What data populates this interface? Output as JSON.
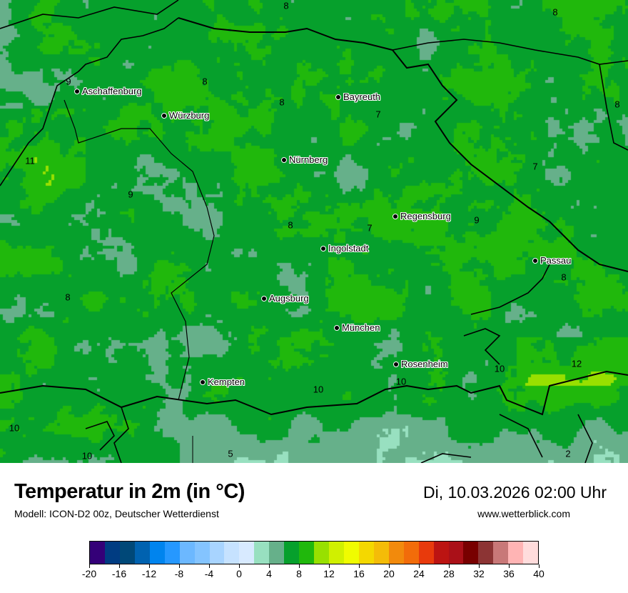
{
  "header": {
    "title": "Temperatur in 2m (in °C)",
    "model": "Modell: ICON-D2 00z, Deutscher Wetterdienst",
    "datetime": "Di, 10.03.2026 02:00 Uhr",
    "website": "www.wetterblick.com"
  },
  "legend": {
    "ticks": [
      "-20",
      "-16",
      "-12",
      "-8",
      "-4",
      "0",
      "4",
      "8",
      "12",
      "16",
      "20",
      "24",
      "28",
      "32",
      "36",
      "40"
    ],
    "colors": [
      "#340078",
      "#003c82",
      "#004878",
      "#0062b0",
      "#0084ee",
      "#2698ff",
      "#6cb8ff",
      "#84c4ff",
      "#a8d4ff",
      "#c6e2ff",
      "#d8eaff",
      "#98e0c0",
      "#66b08a",
      "#06a02c",
      "#20b80c",
      "#98e000",
      "#d0f000",
      "#f0fc00",
      "#f4d800",
      "#f4bc08",
      "#f28a0c",
      "#f26c0a",
      "#e83a0c",
      "#bc1412",
      "#aa1018",
      "#780000",
      "#8c3434",
      "#c87878",
      "#ffb4b4",
      "#ffdcdc"
    ]
  },
  "cities": [
    {
      "name": "Aschaffenburg"
    },
    {
      "name": "Würzburg"
    },
    {
      "name": "Bayreuth"
    },
    {
      "name": "Nürnberg"
    },
    {
      "name": "Regensburg"
    },
    {
      "name": "Ingolstadt"
    },
    {
      "name": "Passau"
    },
    {
      "name": "Augsburg"
    },
    {
      "name": "München"
    },
    {
      "name": "Rosenheim"
    },
    {
      "name": "Kempten"
    }
  ],
  "values": [
    "8",
    "8",
    "9",
    "8",
    "8",
    "7",
    "8",
    "11",
    "7",
    "9",
    "9",
    "8",
    "7",
    "8",
    "8",
    "10",
    "10",
    "12",
    "10",
    "10",
    "10",
    "5",
    "2"
  ]
}
